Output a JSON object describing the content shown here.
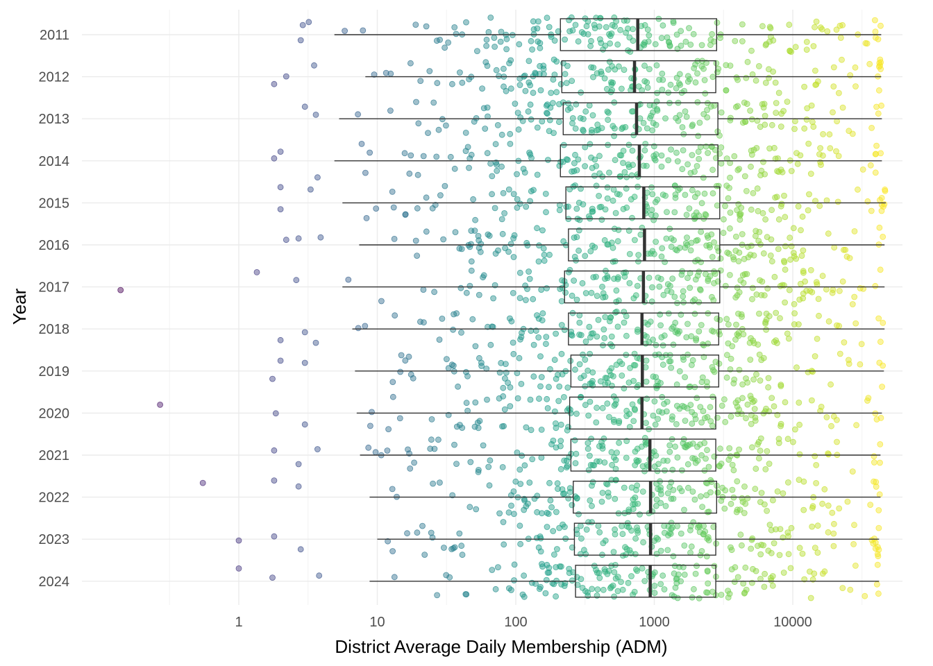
{
  "chart_data": {
    "type": "boxplot",
    "orientation": "horizontal",
    "xlabel": "District Average Daily Membership (ADM)",
    "ylabel": "Year",
    "x_scale": "log10",
    "xlim": [
      0.035,
      70000
    ],
    "x_ticks": [
      1,
      10,
      100,
      1000,
      10000
    ],
    "x_tick_labels": [
      "1",
      "10",
      "100",
      "1000",
      "10000"
    ],
    "grid": true,
    "legend": "none",
    "colormap": "viridis",
    "categories": [
      "2011",
      "2012",
      "2013",
      "2014",
      "2015",
      "2016",
      "2017",
      "2018",
      "2019",
      "2020",
      "2021",
      "2022",
      "2023",
      "2024"
    ],
    "boxes": [
      {
        "year": "2011",
        "whisker_low": 4.9,
        "q1": 210,
        "median": 760,
        "q3": 2820,
        "whisker_high": 43500
      },
      {
        "year": "2012",
        "whisker_low": 8.2,
        "q1": 215,
        "median": 720,
        "q3": 2780,
        "whisker_high": 43500
      },
      {
        "year": "2013",
        "whisker_low": 5.3,
        "q1": 220,
        "median": 745,
        "q3": 2880,
        "whisker_high": 44000
      },
      {
        "year": "2014",
        "whisker_low": 4.9,
        "q1": 210,
        "median": 780,
        "q3": 2880,
        "whisker_high": 44000
      },
      {
        "year": "2015",
        "whisker_low": 5.6,
        "q1": 230,
        "median": 840,
        "q3": 2970,
        "whisker_high": 47000
      },
      {
        "year": "2016",
        "whisker_low": 7.4,
        "q1": 240,
        "median": 850,
        "q3": 2970,
        "whisker_high": 46000
      },
      {
        "year": "2017",
        "whisker_low": 5.6,
        "q1": 225,
        "median": 835,
        "q3": 2970,
        "whisker_high": 46000
      },
      {
        "year": "2018",
        "whisker_low": 6.6,
        "q1": 240,
        "median": 815,
        "q3": 2920,
        "whisker_high": 46000
      },
      {
        "year": "2019",
        "whisker_low": 6.9,
        "q1": 250,
        "median": 820,
        "q3": 2920,
        "whisker_high": 45500
      },
      {
        "year": "2020",
        "whisker_low": 7.1,
        "q1": 245,
        "median": 815,
        "q3": 2780,
        "whisker_high": 44000
      },
      {
        "year": "2021",
        "whisker_low": 7.5,
        "q1": 250,
        "median": 930,
        "q3": 2780,
        "whisker_high": 43000
      },
      {
        "year": "2022",
        "whisker_low": 8.8,
        "q1": 260,
        "median": 940,
        "q3": 2820,
        "whisker_high": 43000
      },
      {
        "year": "2023",
        "whisker_low": 10.0,
        "q1": 265,
        "median": 940,
        "q3": 2780,
        "whisker_high": 42000
      },
      {
        "year": "2024",
        "whisker_low": 8.8,
        "q1": 270,
        "median": 935,
        "q3": 2780,
        "whisker_high": 42000
      }
    ],
    "jitter_points_per_year": 160,
    "outlier_points": [
      {
        "year": "2011",
        "x": 2.8
      },
      {
        "year": "2011",
        "x": 3.2
      },
      {
        "year": "2011",
        "x": 2.9
      },
      {
        "year": "2012",
        "x": 1.8
      },
      {
        "year": "2012",
        "x": 2.2
      },
      {
        "year": "2012",
        "x": 3.5
      },
      {
        "year": "2013",
        "x": 3.0
      },
      {
        "year": "2013",
        "x": 3.6
      },
      {
        "year": "2014",
        "x": 2.0
      },
      {
        "year": "2014",
        "x": 1.8
      },
      {
        "year": "2014",
        "x": 3.7
      },
      {
        "year": "2015",
        "x": 2.0
      },
      {
        "year": "2015",
        "x": 2.0
      },
      {
        "year": "2015",
        "x": 3.3
      },
      {
        "year": "2016",
        "x": 2.7
      },
      {
        "year": "2016",
        "x": 2.2
      },
      {
        "year": "2016",
        "x": 3.9
      },
      {
        "year": "2017",
        "x": 0.14
      },
      {
        "year": "2017",
        "x": 1.35
      },
      {
        "year": "2017",
        "x": 2.6
      },
      {
        "year": "2018",
        "x": 2.0
      },
      {
        "year": "2018",
        "x": 3.0
      },
      {
        "year": "2018",
        "x": 3.6
      },
      {
        "year": "2019",
        "x": 1.75
      },
      {
        "year": "2019",
        "x": 2.0
      },
      {
        "year": "2019",
        "x": 3.0
      },
      {
        "year": "2020",
        "x": 0.27
      },
      {
        "year": "2020",
        "x": 1.85
      },
      {
        "year": "2020",
        "x": 3.0
      },
      {
        "year": "2021",
        "x": 1.8
      },
      {
        "year": "2021",
        "x": 2.7
      },
      {
        "year": "2021",
        "x": 3.7
      },
      {
        "year": "2022",
        "x": 0.55
      },
      {
        "year": "2022",
        "x": 1.8
      },
      {
        "year": "2022",
        "x": 2.7
      },
      {
        "year": "2023",
        "x": 1.0
      },
      {
        "year": "2023",
        "x": 1.8
      },
      {
        "year": "2023",
        "x": 2.8
      },
      {
        "year": "2024",
        "x": 1.0
      },
      {
        "year": "2024",
        "x": 1.75
      },
      {
        "year": "2024",
        "x": 3.8
      }
    ]
  }
}
